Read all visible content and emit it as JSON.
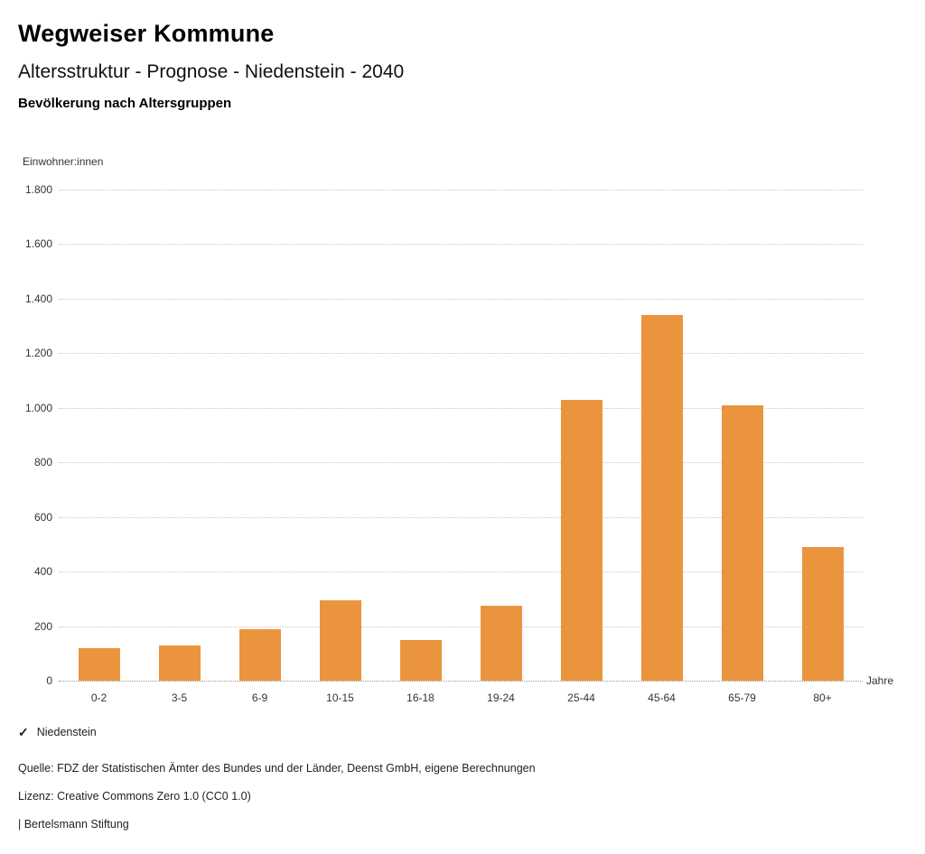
{
  "header": {
    "title": "Wegweiser Kommune",
    "subtitle": "Altersstruktur - Prognose - Niedenstein - 2040",
    "section_title": "Bevölkerung nach Altersgruppen"
  },
  "chart_data": {
    "type": "bar",
    "title": "Bevölkerung nach Altersgruppen",
    "unit_label": "Einwohner:innen",
    "x_axis_label": "Jahre",
    "categories": [
      "0-2",
      "3-5",
      "6-9",
      "10-15",
      "16-18",
      "19-24",
      "25-44",
      "45-64",
      "65-79",
      "80+"
    ],
    "values": [
      120,
      130,
      190,
      295,
      150,
      275,
      1030,
      1340,
      1010,
      490
    ],
    "series_name": "Niedenstein",
    "ylim": [
      0,
      1800
    ],
    "ytick_step": 200,
    "ytick_labels": [
      "0",
      "200",
      "400",
      "600",
      "800",
      "1.000",
      "1.200",
      "1.400",
      "1.600",
      "1.800"
    ],
    "grid": true,
    "legend_position": "bottom-left",
    "bar_color": "#EB943E"
  },
  "legend": {
    "checkmark_icon": "✓",
    "label": "Niedenstein",
    "accent_color": "#EB943E"
  },
  "footer": {
    "source": "Quelle: FDZ der Statistischen Ämter des Bundes und der Länder, Deenst GmbH, eigene Berechnungen",
    "license": "Lizenz: Creative Commons Zero 1.0 (CC0 1.0)",
    "branding": "| Bertelsmann Stiftung"
  }
}
